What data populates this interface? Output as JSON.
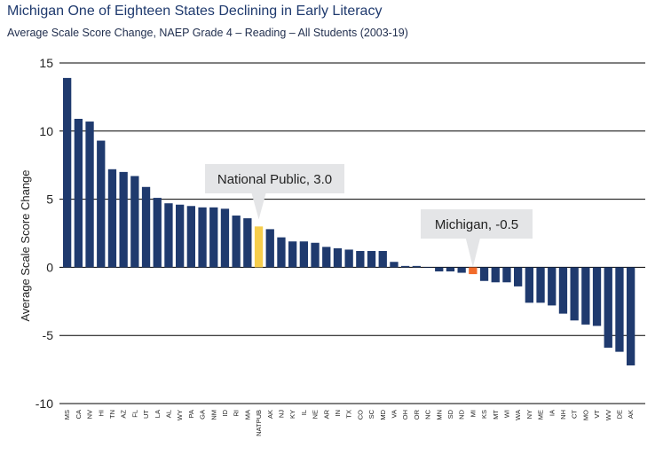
{
  "title": "Michigan One of Eighteen States Declining in Early Literacy",
  "subtitle": "Average Scale Score Change, NAEP Grade 4 – Reading – All Students (2003-19)",
  "chart_data": {
    "type": "bar",
    "ylabel": "Average Scale Score Change",
    "ylim": [
      -10,
      15
    ],
    "yticks": [
      15,
      10,
      5,
      0,
      -5,
      -10
    ],
    "grid": true,
    "colors": {
      "default": "#1f3a6e",
      "national": "#f6cd4c",
      "michigan": "#f26b2a",
      "grid": "#000000"
    },
    "categories": [
      "MS",
      "CA",
      "NV",
      "HI",
      "TN",
      "AZ",
      "FL",
      "UT",
      "LA",
      "AL",
      "WY",
      "PA",
      "GA",
      "NM",
      "ID",
      "RI",
      "MA",
      "NATPUB",
      "AK",
      "NJ",
      "KY",
      "IL",
      "NE",
      "AR",
      "IN",
      "TX",
      "CO",
      "SC",
      "MD",
      "VA",
      "OH",
      "OR",
      "NC",
      "MN",
      "SD",
      "ND",
      "MI",
      "KS",
      "MT",
      "WI",
      "WA",
      "NY",
      "ME",
      "IA",
      "NH",
      "CT",
      "MO",
      "VT",
      "WV",
      "DE",
      "AK"
    ],
    "values": [
      13.9,
      10.9,
      10.7,
      9.3,
      7.2,
      7.0,
      6.7,
      5.9,
      5.1,
      4.7,
      4.6,
      4.5,
      4.4,
      4.4,
      4.3,
      3.8,
      3.6,
      3.0,
      2.8,
      2.2,
      1.9,
      1.9,
      1.8,
      1.5,
      1.4,
      1.3,
      1.2,
      1.2,
      1.2,
      0.4,
      0.1,
      0.1,
      0.0,
      -0.3,
      -0.3,
      -0.4,
      -0.5,
      -1.0,
      -1.1,
      -1.1,
      -1.4,
      -2.6,
      -2.6,
      -2.8,
      -3.4,
      -3.9,
      -4.2,
      -4.3,
      -5.9,
      -6.2,
      -7.2
    ],
    "highlight": {
      "NATPUB": "national",
      "MI": "michigan"
    },
    "annotations": [
      {
        "label": "National Public, 3.0",
        "category_index": 17
      },
      {
        "label": "Michigan, -0.5",
        "category_index": 36
      }
    ]
  }
}
